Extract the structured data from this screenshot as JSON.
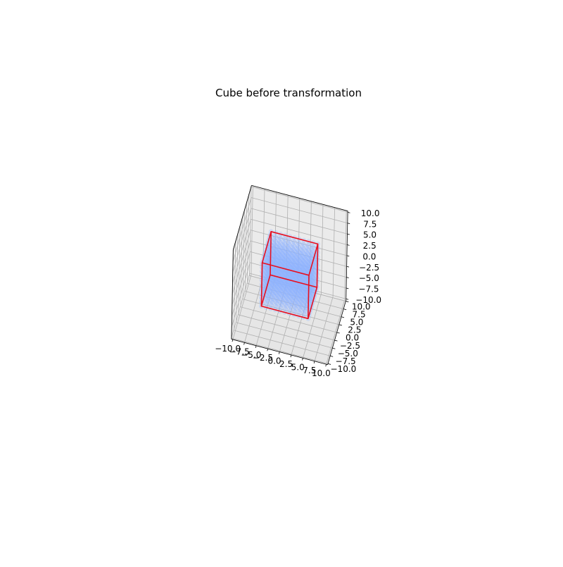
{
  "chart_data": {
    "type": "scatter",
    "subtype": "3d",
    "title": "Cube before transformation",
    "xlabel": "",
    "ylabel": "",
    "zlabel": "",
    "xlim": [
      -10,
      10
    ],
    "ylim": [
      -10,
      10
    ],
    "zlim": [
      -10,
      10
    ],
    "x_ticks": [
      "−10.0",
      "−7.5",
      "−5.0",
      "−2.5",
      "0.0",
      "2.5",
      "5.0",
      "7.5",
      "10.0"
    ],
    "y_ticks": [
      "−10.0",
      "−7.5",
      "−5.0",
      "−2.5",
      "0.0",
      "2.5",
      "5.0",
      "7.5",
      "10.0"
    ],
    "z_ticks": [
      "−10.0",
      "−7.5",
      "−5.0",
      "−2.5",
      "0.0",
      "2.5",
      "5.0",
      "7.5",
      "10.0"
    ],
    "grid": true,
    "series": [
      {
        "kind": "points",
        "x_range": [
          -5,
          5
        ],
        "y_range": [
          -5,
          5
        ],
        "z_range": [
          -5,
          5
        ],
        "points_per_axis": 11,
        "color": "#8fb3ff",
        "alpha": 0.25
      },
      {
        "kind": "wireframe",
        "color": "#e8101f",
        "corners": [
          [
            -5,
            -5,
            -5
          ],
          [
            5,
            -5,
            -5
          ],
          [
            5,
            5,
            -5
          ],
          [
            -5,
            5,
            -5
          ],
          [
            -5,
            -5,
            5
          ],
          [
            5,
            -5,
            5
          ],
          [
            5,
            5,
            5
          ],
          [
            -5,
            5,
            5
          ]
        ],
        "edges": [
          [
            0,
            1
          ],
          [
            1,
            2
          ],
          [
            2,
            3
          ],
          [
            3,
            0
          ],
          [
            4,
            5
          ],
          [
            5,
            6
          ],
          [
            6,
            7
          ],
          [
            7,
            4
          ],
          [
            0,
            4
          ],
          [
            1,
            5
          ],
          [
            2,
            6
          ],
          [
            3,
            7
          ]
        ]
      }
    ],
    "colors": {
      "pane_left": "#f2f2f2",
      "pane_right": "#ebebeb",
      "pane_floor": "#e6e6e6",
      "grid": "#b0b0b0",
      "axis": "#000000"
    }
  }
}
